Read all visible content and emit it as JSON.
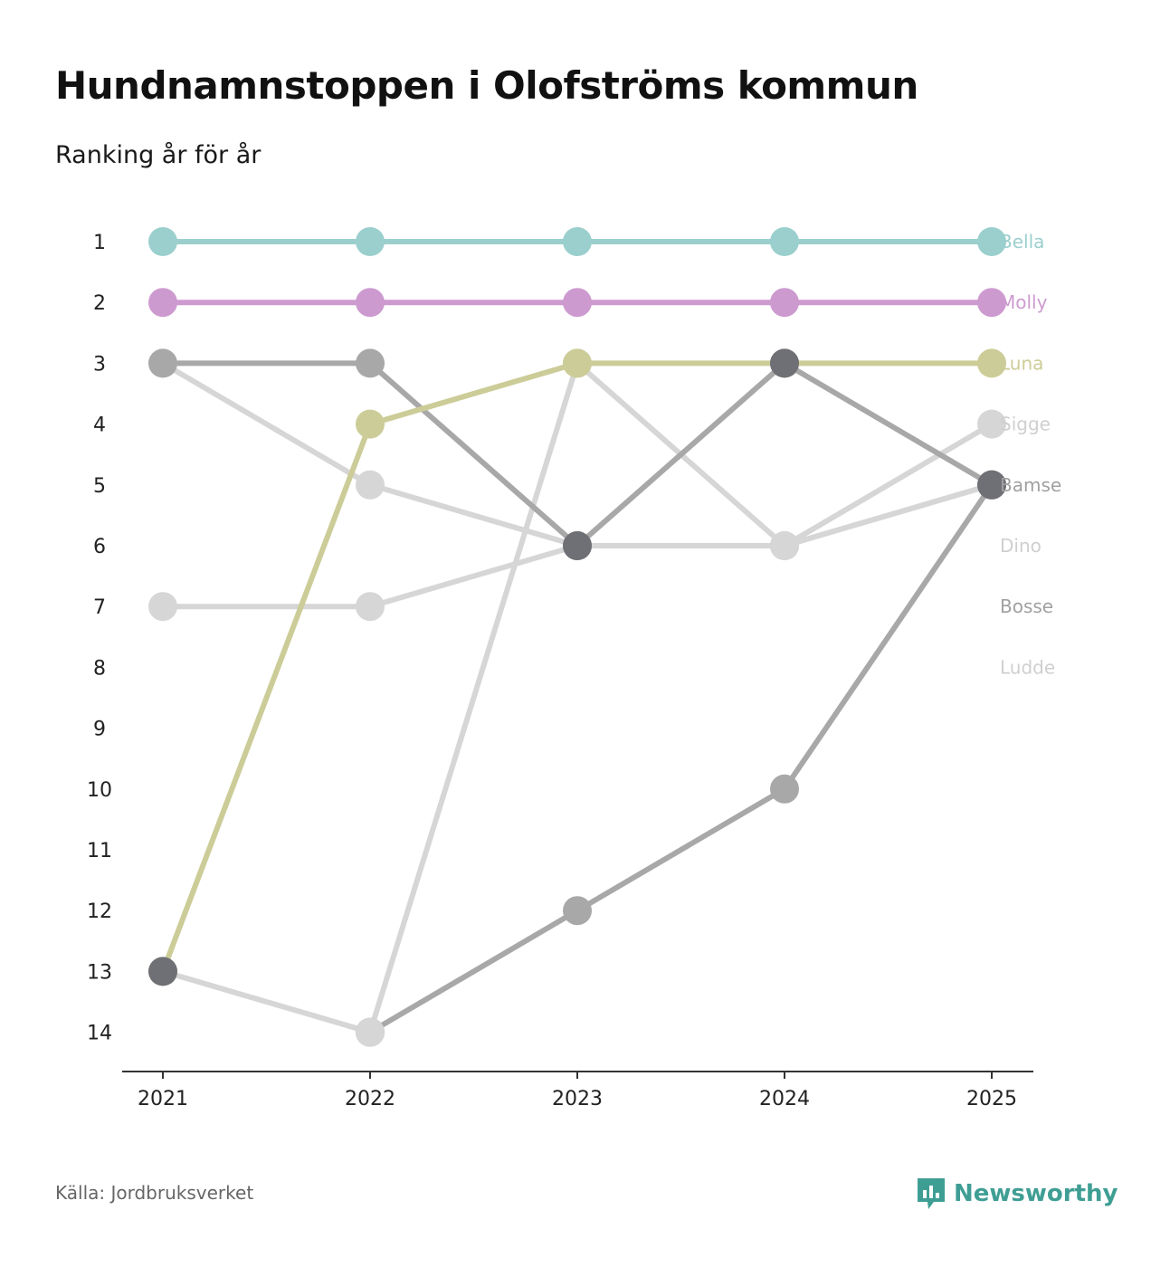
{
  "title": "Hundnamnstoppen i Olofströms kommun",
  "subtitle": "Ranking år för år",
  "source": "Källa: Jordbruksverket",
  "brand": {
    "name": "Newsworthy",
    "icon": "newsworthy-logo-icon",
    "color": "#3f9e94"
  },
  "chart_data": {
    "type": "line",
    "subtype": "bump",
    "title": "Hundnamnstoppen i Olofströms kommun",
    "subtitle": "Ranking år för år",
    "x": [
      "2021",
      "2022",
      "2023",
      "2024",
      "2025"
    ],
    "y_ticks": [
      "1",
      "2",
      "3",
      "4",
      "5",
      "6",
      "7",
      "8",
      "9",
      "10",
      "11",
      "12",
      "13",
      "14"
    ],
    "ylim": [
      1,
      14
    ],
    "y_inverted": true,
    "xlabel": "",
    "ylabel": "",
    "grid": false,
    "legend": "right-end labels",
    "series": [
      {
        "name": "Ludde",
        "color": "#d6d6d6",
        "values": [
          null,
          null,
          null,
          null,
          null
        ]
      },
      {
        "name": "Bosse",
        "color": "#a8a8a8",
        "values": [
          null,
          null,
          null,
          null,
          null
        ]
      },
      {
        "name": "Dino",
        "color": "#d6d6d6",
        "values": [
          13,
          14,
          3,
          6,
          5
        ]
      },
      {
        "name": "Sigge",
        "color": "#d6d6d6",
        "values": [
          7,
          7,
          6,
          6,
          4
        ]
      },
      {
        "name": "Bamse",
        "color": "#a8a8a8",
        "values": [
          3,
          3,
          6,
          3,
          5
        ]
      },
      {
        "name": "Bella",
        "color": "#9acfcd",
        "values": [
          1,
          1,
          1,
          1,
          1
        ]
      },
      {
        "name": "Molly",
        "color": "#cd9ad0",
        "values": [
          2,
          2,
          2,
          2,
          2
        ]
      },
      {
        "name": "Luna",
        "color": "#cccc98",
        "values": [
          13,
          4,
          3,
          3,
          3
        ]
      }
    ],
    "extra_series": [
      {
        "name": "ranked-line-a",
        "color": "#d6d6d6",
        "values": [
          3,
          5,
          6,
          6,
          5
        ]
      },
      {
        "name": "ranked-line-b",
        "color": "#a8a8a8",
        "values": [
          null,
          14,
          12,
          10,
          5
        ]
      }
    ],
    "highlight_points": [
      {
        "x": "2021",
        "y": 13,
        "color": "#6f6f76"
      },
      {
        "x": "2023",
        "y": 6,
        "color": "#6f6f76"
      },
      {
        "x": "2024",
        "y": 3,
        "color": "#6f6f76"
      },
      {
        "x": "2025",
        "y": 5,
        "color": "#6f6f76"
      }
    ],
    "label_order": [
      "Bella",
      "Molly",
      "Luna",
      "Sigge",
      "Bamse",
      "Dino",
      "Bosse",
      "Ludde"
    ]
  }
}
